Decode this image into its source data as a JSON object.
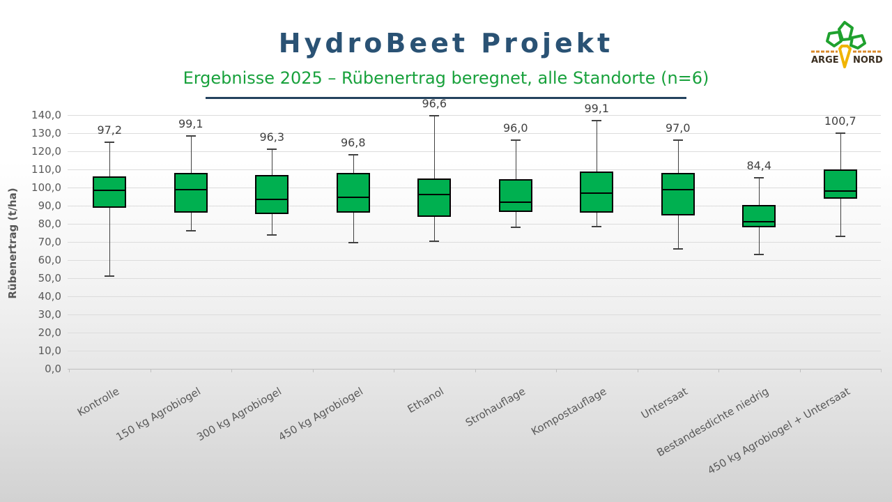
{
  "header": {
    "title": "HydroBeet Projekt",
    "subtitle": "Ergebnisse 2025 – Rübenertrag beregnet, alle Standorte (n=6)"
  },
  "logo": {
    "left_text": "ARGE",
    "right_text": "NORD",
    "icon": "beet-with-leaves-icon",
    "colors": {
      "leaf": "#1fa12e",
      "root": "#f0b400",
      "lines": "#d98a2b",
      "text": "#3a2e20"
    }
  },
  "chart_data": {
    "type": "box",
    "title": "HydroBeet Projekt",
    "subtitle": "Ergebnisse 2025 – Rübenertrag beregnet, alle Standorte (n=6)",
    "ylabel": "Rübenertrag (t/ha)",
    "xlabel": "",
    "ylim": [
      0,
      140
    ],
    "ytick_step": 10,
    "ytick_values": [
      0,
      10,
      20,
      30,
      40,
      50,
      60,
      70,
      80,
      90,
      100,
      110,
      120,
      130,
      140
    ],
    "ytick_labels": [
      "0,0",
      "10,0",
      "20,0",
      "30,0",
      "40,0",
      "50,0",
      "60,0",
      "70,0",
      "80,0",
      "90,0",
      "100,0",
      "110,0",
      "120,0",
      "130,0",
      "140,0"
    ],
    "grid": true,
    "legend": "none",
    "categories": [
      "Kontrolle",
      "150 kg Agrobiogel",
      "300 kg Agrobiogel",
      "450 kg Agrobiogel",
      "Ethanol",
      "Strohauflage",
      "Kompostauflage",
      "Untersaat",
      "Bestandesdichte niedrig",
      "450 kg Agrobiogel + Untersaat"
    ],
    "boxes": [
      {
        "category": "Kontrolle",
        "min": 51,
        "q1": 89,
        "median": 98.5,
        "q3": 106,
        "max": 125,
        "mean": 97.2,
        "mean_label": "97,2"
      },
      {
        "category": "150 kg Agrobiogel",
        "min": 76,
        "q1": 86,
        "median": 99,
        "q3": 108,
        "max": 128.5,
        "mean": 99.1,
        "mean_label": "99,1"
      },
      {
        "category": "300 kg Agrobiogel",
        "min": 74,
        "q1": 85.5,
        "median": 93.5,
        "q3": 107,
        "max": 121,
        "mean": 96.3,
        "mean_label": "96,3"
      },
      {
        "category": "450 kg Agrobiogel",
        "min": 69.5,
        "q1": 86,
        "median": 94.5,
        "q3": 108,
        "max": 118,
        "mean": 96.8,
        "mean_label": "96,8"
      },
      {
        "category": "Ethanol",
        "min": 70.5,
        "q1": 84,
        "median": 96,
        "q3": 105,
        "max": 139.5,
        "mean": 96.6,
        "mean_label": "96,6"
      },
      {
        "category": "Strohauflage",
        "min": 78,
        "q1": 86.5,
        "median": 92,
        "q3": 104.5,
        "max": 126,
        "mean": 96.0,
        "mean_label": "96,0"
      },
      {
        "category": "Kompostauflage",
        "min": 78.5,
        "q1": 86,
        "median": 97,
        "q3": 109,
        "max": 137,
        "mean": 99.1,
        "mean_label": "99,1"
      },
      {
        "category": "Untersaat",
        "min": 66,
        "q1": 84.5,
        "median": 99,
        "q3": 108,
        "max": 126,
        "mean": 97.0,
        "mean_label": "97,0"
      },
      {
        "category": "Bestandesdichte niedrig",
        "min": 63,
        "q1": 78,
        "median": 81,
        "q3": 90.5,
        "max": 105.5,
        "mean": 84.4,
        "mean_label": "84,4"
      },
      {
        "category": "450 kg Agrobiogel + Untersaat",
        "min": 73,
        "q1": 94,
        "median": 98,
        "q3": 110,
        "max": 130,
        "mean": 100.7,
        "mean_label": "100,7"
      }
    ],
    "colors": {
      "box_fill": "#00b050",
      "box_border": "#000000",
      "whisker": "#404040",
      "gridline": "#dcdcdc",
      "axis_text": "#595959",
      "value_label": "#404040",
      "title": "#2a5274",
      "subtitle": "#18a13c",
      "divider": "#24425e"
    }
  }
}
